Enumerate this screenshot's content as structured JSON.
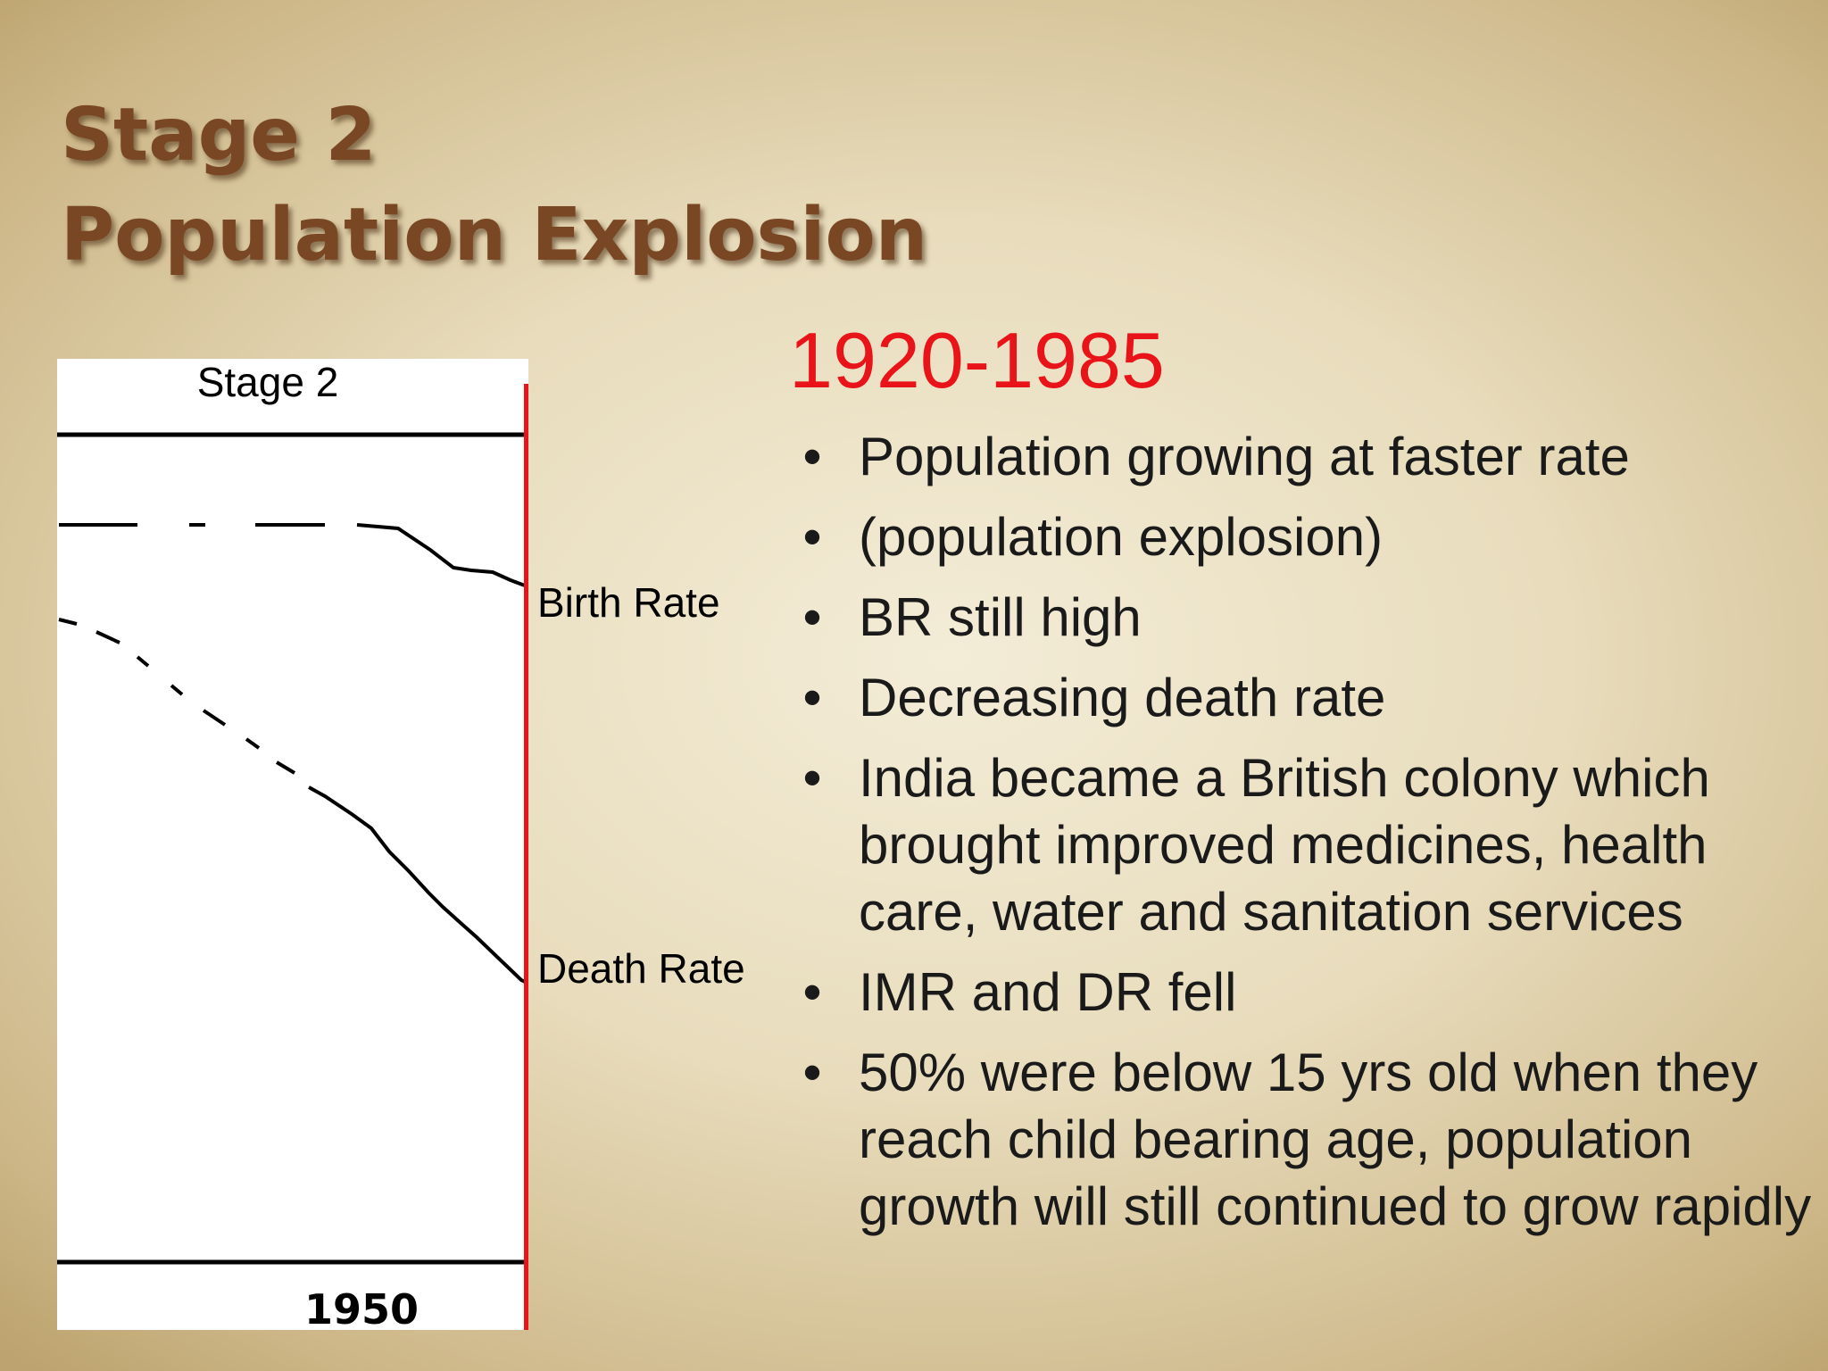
{
  "slide": {
    "title_line1": "Stage 2",
    "title_line2": "Population Explosion",
    "years": "1920-1985",
    "accent_color": "#e8141a",
    "title_color": "#7a4724"
  },
  "chart": {
    "stage_label": "Stage 2",
    "birth_label": "Birth Rate",
    "death_label": "Death Rate",
    "year_label": "1950"
  },
  "bullets": [
    "Population growing at faster rate",
    "(population explosion)",
    "BR still high",
    "Decreasing death rate",
    "India became a British colony which brought improved medicines, health care, water and sanitation services",
    "IMR and DR fell",
    "50% were below 15 yrs old when they reach child bearing age, population growth will still continued to grow rapidly"
  ],
  "bullet_glyph": "•"
}
